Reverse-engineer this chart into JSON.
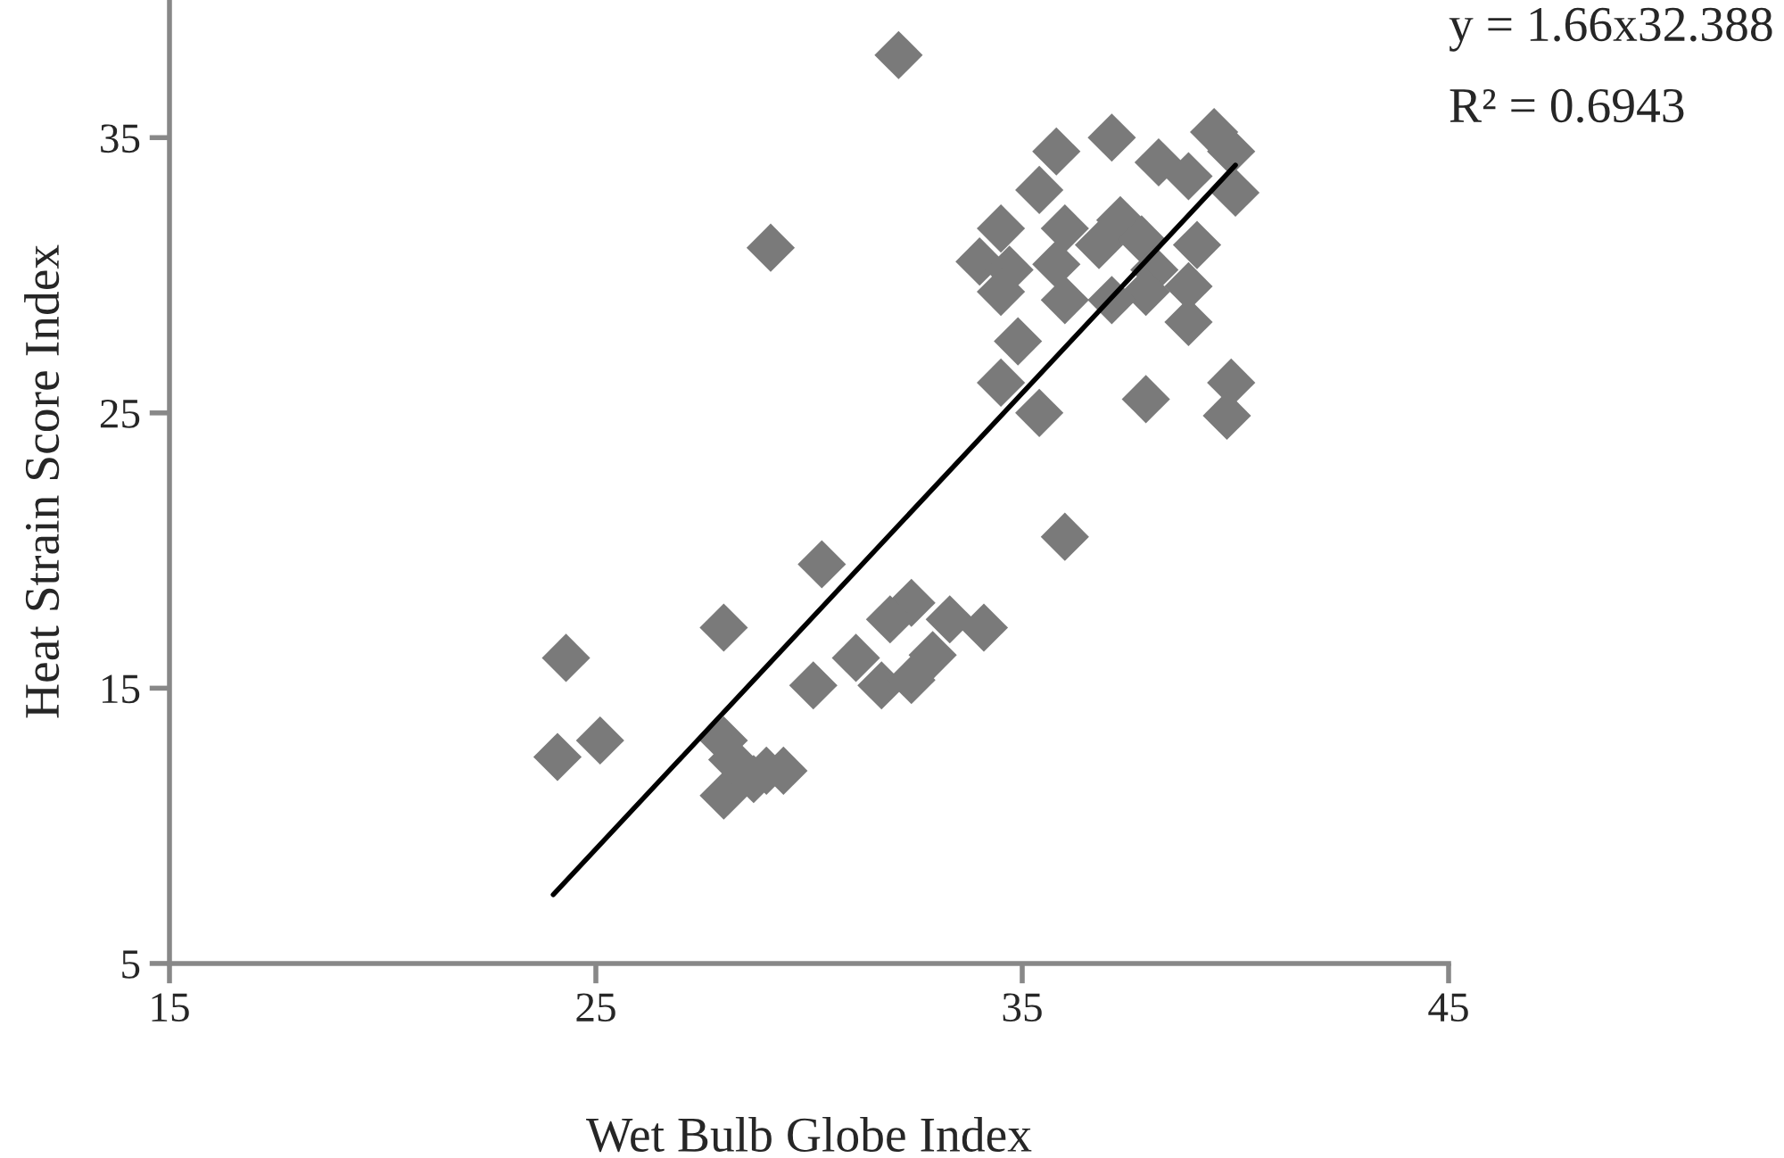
{
  "chart_data": {
    "type": "scatter",
    "xlabel": "Wet Bulb Globe Index",
    "ylabel": "Heat Strain Score Index",
    "xlim": [
      15,
      45
    ],
    "xticks": [
      15,
      25,
      35,
      45
    ],
    "ylim": [
      5,
      40
    ],
    "yticks": [
      5,
      15,
      25,
      35
    ],
    "grid": false,
    "annotations": [
      "y = 1.66x32.388",
      "R² = 0.6943"
    ],
    "series": [
      {
        "marker": "diamond",
        "color": "#7a7a7a",
        "x": [
          24.1,
          24.3,
          25.1,
          28.0,
          28.0,
          28.0,
          28.2,
          28.7,
          29.0,
          29.4,
          32.1,
          29.1,
          30.1,
          30.3,
          31.1,
          31.7,
          32.4,
          32.4,
          33.3,
          34.1,
          32.9,
          31.9,
          35.8,
          37.1,
          35.4,
          39.5,
          39.9,
          38.2,
          38.9,
          40.0,
          34.5,
          34.0,
          34.7,
          34.5,
          36.0,
          35.8,
          36.0,
          37.3,
          36.8,
          37.8,
          38.1,
          37.9,
          37.1,
          39.1,
          38.9,
          38.9,
          34.9,
          34.5,
          35.4,
          37.9,
          39.9,
          39.8,
          36.0
        ],
        "values": [
          12.5,
          16.1,
          13.1,
          17.2,
          11.1,
          13.1,
          12.4,
          11.7,
          12.0,
          12.0,
          38.0,
          31.0,
          15.1,
          19.5,
          16.1,
          15.1,
          15.3,
          18.1,
          17.5,
          17.2,
          16.2,
          17.5,
          34.5,
          35.0,
          33.1,
          35.2,
          34.5,
          34.1,
          33.6,
          33.0,
          31.7,
          30.5,
          30.2,
          29.4,
          31.7,
          30.4,
          29.1,
          32.0,
          31.1,
          31.3,
          30.2,
          29.4,
          29.1,
          31.1,
          29.6,
          28.3,
          27.6,
          26.1,
          25.0,
          25.5,
          26.1,
          24.9,
          20.5
        ]
      },
      {
        "type": "line",
        "marker": "none",
        "color": "#000000",
        "x": [
          24,
          40
        ],
        "values": [
          7.5,
          34.0
        ]
      }
    ]
  }
}
